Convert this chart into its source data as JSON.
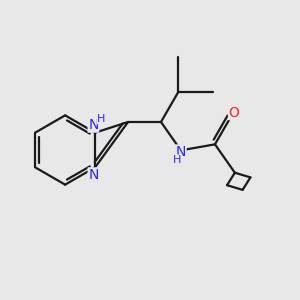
{
  "background_color": "#e8e8e8",
  "bond_color": "#1a1a1a",
  "nitrogen_color": "#2828ff",
  "oxygen_color": "#ff2020",
  "bond_width": 1.6,
  "font_size_atom": 10,
  "font_size_H": 8,
  "fig_width": 3.0,
  "fig_height": 3.0,
  "dpi": 100,
  "xlim": [
    -4.0,
    4.5
  ],
  "ylim": [
    -3.5,
    3.5
  ]
}
